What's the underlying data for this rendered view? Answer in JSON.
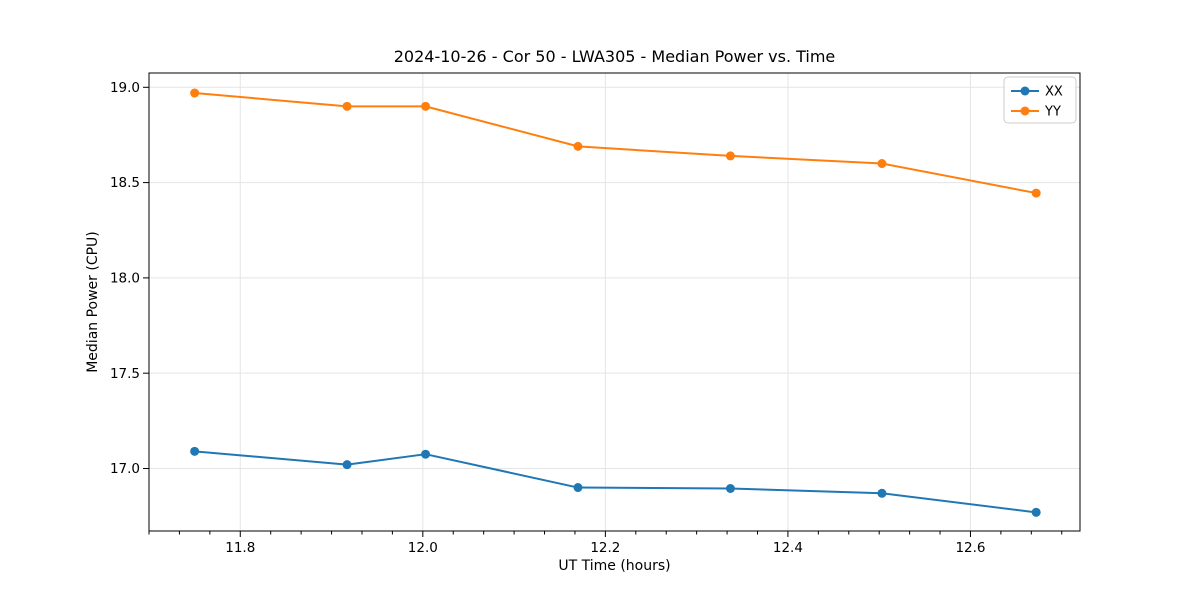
{
  "chart_data": {
    "type": "line",
    "title": "2024-10-26 - Cor 50 - LWA305 - Median Power vs. Time",
    "xlabel": "UT Time (hours)",
    "ylabel": "Median Power (CPU)",
    "x": [
      11.75,
      11.917,
      12.003,
      12.17,
      12.337,
      12.503,
      12.672
    ],
    "series": [
      {
        "name": "XX",
        "color": "#1f77b4",
        "values": [
          17.09,
          17.02,
          17.075,
          16.9,
          16.895,
          16.87,
          16.77
        ]
      },
      {
        "name": "YY",
        "color": "#ff7f0e",
        "values": [
          18.97,
          18.9,
          18.9,
          18.69,
          18.64,
          18.6,
          18.445
        ]
      }
    ],
    "xlim": [
      11.7,
      12.72
    ],
    "ylim": [
      16.672,
      19.075
    ],
    "x_ticks": [
      11.8,
      12.0,
      12.2,
      12.4,
      12.6
    ],
    "y_ticks": [
      17.0,
      17.5,
      18.0,
      18.5,
      19.0
    ],
    "x_tick_step": 0.2,
    "x_minor_divisions": 6,
    "grid": true,
    "grid_color": "#e5e5e5",
    "axis_color": "#000000",
    "tick_label_format_decimals": 1,
    "legend": {
      "position": "upper right",
      "labels": [
        "XX",
        "YY"
      ]
    }
  }
}
